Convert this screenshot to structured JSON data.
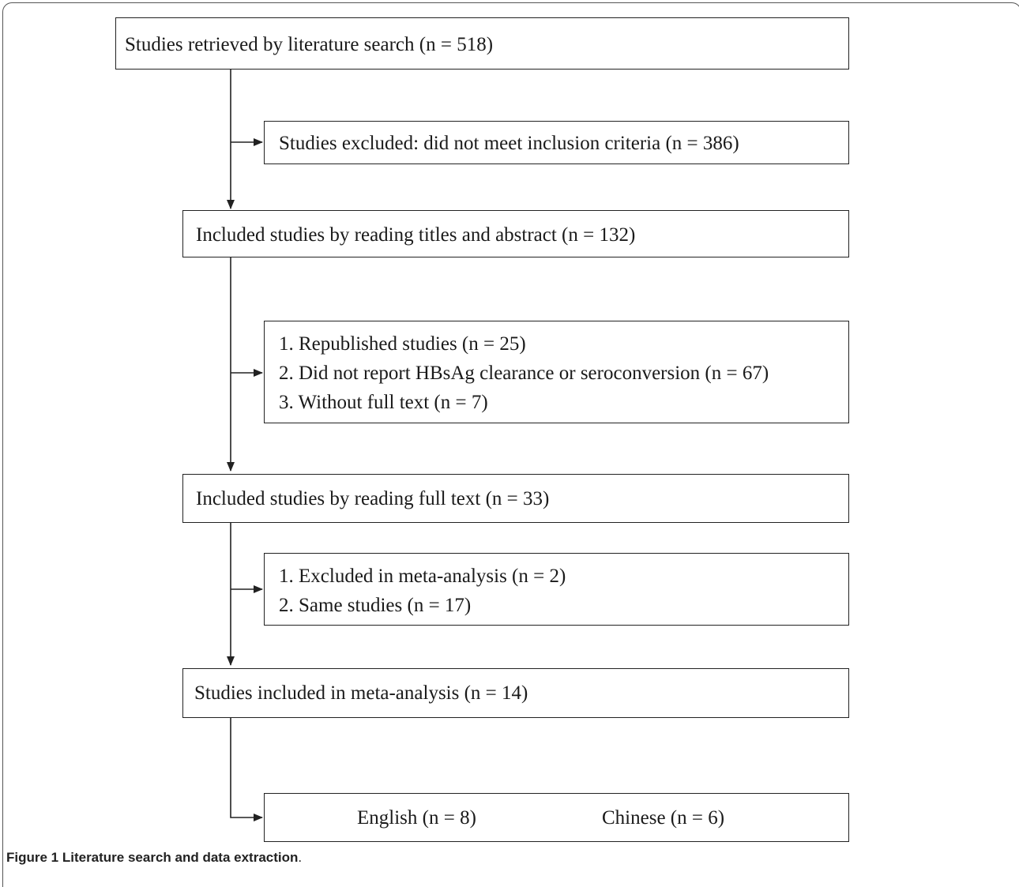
{
  "flowchart": {
    "boxes": {
      "retrieved": [
        "Studies retrieved by literature search (n = 518)"
      ],
      "excluded_criteria": [
        "Studies excluded: did not meet inclusion criteria (n = 386)"
      ],
      "included_titles": [
        "Included studies by reading titles and abstract (n = 132)"
      ],
      "excluded_reasons": [
        "1. Republished studies (n = 25)",
        "2. Did not report HBsAg clearance or seroconversion (n = 67)",
        "3. Without full text (n = 7)"
      ],
      "included_fulltext": [
        "Included studies by reading full text (n = 33)"
      ],
      "excluded_meta": [
        "1. Excluded in meta-analysis (n = 2)",
        "2. Same studies (n = 17)"
      ],
      "included_meta": [
        "Studies included in meta-analysis (n = 14)"
      ],
      "language_split": {
        "english": "English (n = 8)",
        "chinese": "Chinese (n = 6)"
      }
    }
  },
  "caption": {
    "label": "Figure 1",
    "text": " Literature search and data extraction",
    "end": "."
  }
}
